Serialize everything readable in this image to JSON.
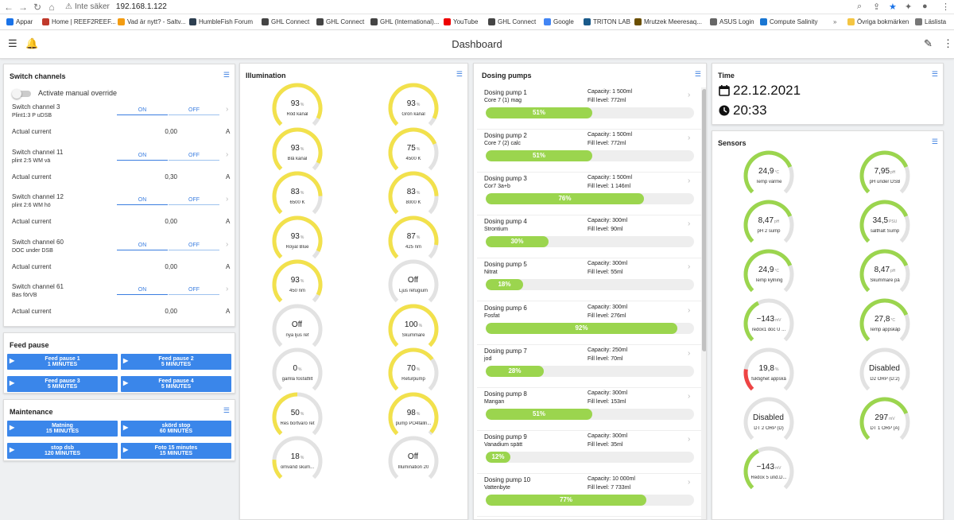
{
  "browser": {
    "security_label": "Inte säker",
    "url": "192.168.1.122",
    "bookmarks": [
      {
        "label": "Appar",
        "color": "#1a73e8"
      },
      {
        "label": "Home | REEF2REEF...",
        "color": "#c0392b"
      },
      {
        "label": "Vad är nytt? - Saltv...",
        "color": "#f39c12"
      },
      {
        "label": "HumbleFish Forum",
        "color": "#2c3e50"
      },
      {
        "label": "GHL Connect",
        "color": "#444"
      },
      {
        "label": "GHL Connect",
        "color": "#444"
      },
      {
        "label": "GHL (International)...",
        "color": "#444"
      },
      {
        "label": "YouTube",
        "color": "#e00"
      },
      {
        "label": "GHL Connect",
        "color": "#444"
      },
      {
        "label": "Google",
        "color": "#4285f4"
      },
      {
        "label": "TRITON LAB",
        "color": "#1a5a8a"
      },
      {
        "label": "Mrutzek Meeresaq...",
        "color": "#6b4f00"
      },
      {
        "label": "ASUS Login",
        "color": "#666"
      },
      {
        "label": "Compute Salinity",
        "color": "#1976d2"
      }
    ],
    "other_bookmarks": "Övriga bokmärken",
    "reading_list": "Läslista"
  },
  "app": {
    "title": "Dashboard"
  },
  "switch_panel": {
    "title": "Switch channels",
    "override_label": "Activate manual override",
    "on_label": "ON",
    "off_label": "OFF",
    "current_label": "Actual current",
    "unit": "A",
    "channels": [
      {
        "title": "Switch channel 3",
        "subtitle": "Plint1:3 P uDSB",
        "current": "0,00"
      },
      {
        "title": "Switch channel 11",
        "subtitle": "plint 2:5 WM vä",
        "current": "0,30"
      },
      {
        "title": "Switch channel 12",
        "subtitle": "plint 2:6 WM hö",
        "current": "0,00"
      },
      {
        "title": "Switch channel 60",
        "subtitle": "DOC under DSB",
        "current": "0,00"
      },
      {
        "title": "Switch channel 61",
        "subtitle": "Bas förVB",
        "current": "0,00"
      }
    ]
  },
  "feed_panel": {
    "title": "Feed pause",
    "buttons": [
      {
        "line1": "Feed pause 1",
        "line2": "1 MINUTES"
      },
      {
        "line1": "Feed pause 2",
        "line2": "5 MINUTES"
      },
      {
        "line1": "Feed pause 3",
        "line2": "5 MINUTES"
      },
      {
        "line1": "Feed pause 4",
        "line2": "5 MINUTES"
      }
    ]
  },
  "maintenance_panel": {
    "title": "Maintenance",
    "buttons": [
      {
        "line1": "Matning",
        "line2": "15 MINUTES"
      },
      {
        "line1": "skörd stop",
        "line2": "60 MINUTES"
      },
      {
        "line1": "stop dsb",
        "line2": "120 MINUTES"
      },
      {
        "line1": "Foto 15 minutes",
        "line2": "15 MINUTES"
      }
    ]
  },
  "illumination_panel": {
    "title": "Illumination",
    "gauges": [
      {
        "value": "93",
        "unit": "%",
        "label": "Röd kanal",
        "fraction": 0.93
      },
      {
        "value": "93",
        "unit": "%",
        "label": "Grön kanal",
        "fraction": 0.93
      },
      {
        "value": "93",
        "unit": "%",
        "label": "Blå kanal",
        "fraction": 0.93
      },
      {
        "value": "75",
        "unit": "%",
        "label": "4500 K",
        "fraction": 0.75
      },
      {
        "value": "83",
        "unit": "%",
        "label": "6500 K",
        "fraction": 0.83
      },
      {
        "value": "83",
        "unit": "%",
        "label": "8000 K",
        "fraction": 0.83
      },
      {
        "value": "93",
        "unit": "%",
        "label": "Royal Blue",
        "fraction": 0.93
      },
      {
        "value": "87",
        "unit": "%",
        "label": "425 nm",
        "fraction": 0.87
      },
      {
        "value": "93",
        "unit": "%",
        "label": "450 nm",
        "fraction": 0.93
      },
      {
        "value": "Off",
        "unit": "",
        "label": "Ljus refugium",
        "fraction": 0
      },
      {
        "value": "Off",
        "unit": "",
        "label": "nya ljus ref",
        "fraction": 0
      },
      {
        "value": "100",
        "unit": "%",
        "label": "Skummare",
        "fraction": 1.0
      },
      {
        "value": "0",
        "unit": "%",
        "label": "gamla fosfatfilt",
        "fraction": 0
      },
      {
        "value": "70",
        "unit": "%",
        "label": "Returpump",
        "fraction": 0.7
      },
      {
        "value": "50",
        "unit": "%",
        "label": "Res bortvaro ret",
        "fraction": 0.5
      },
      {
        "value": "98",
        "unit": "%",
        "label": "pump PO4fälln...",
        "fraction": 0.98
      },
      {
        "value": "18",
        "unit": "%",
        "label": "omvänd skum...",
        "fraction": 0.18
      },
      {
        "value": "Off",
        "unit": "",
        "label": "Illumination 20",
        "fraction": 0
      }
    ],
    "color": "#f2e14c"
  },
  "dosing_panel": {
    "title": "Dosing pumps",
    "capacity_prefix": "Capacity: ",
    "fill_prefix": "Fill level: ",
    "pumps": [
      {
        "name": "Dosing pump 1",
        "subtitle": "Core 7 (1) mag",
        "capacity": "1 500ml",
        "fill": "772ml",
        "percent": "51%",
        "fraction": 0.51
      },
      {
        "name": "Dosing pump 2",
        "subtitle": "Core 7 (2) calc",
        "capacity": "1 500ml",
        "fill": "772ml",
        "percent": "51%",
        "fraction": 0.51
      },
      {
        "name": "Dosing pump 3",
        "subtitle": "Cor7 3a+b",
        "capacity": "1 500ml",
        "fill": "1 146ml",
        "percent": "76%",
        "fraction": 0.76
      },
      {
        "name": "Dosing pump 4",
        "subtitle": "Strontium",
        "capacity": "300ml",
        "fill": "90ml",
        "percent": "30%",
        "fraction": 0.3
      },
      {
        "name": "Dosing pump 5",
        "subtitle": "Nitrat",
        "capacity": "300ml",
        "fill": "55ml",
        "percent": "18%",
        "fraction": 0.18
      },
      {
        "name": "Dosing pump 6",
        "subtitle": "Fosfat",
        "capacity": "300ml",
        "fill": "276ml",
        "percent": "92%",
        "fraction": 0.92
      },
      {
        "name": "Dosing pump 7",
        "subtitle": "jod",
        "capacity": "250ml",
        "fill": "70ml",
        "percent": "28%",
        "fraction": 0.28
      },
      {
        "name": "Dosing pump 8",
        "subtitle": "Mangan",
        "capacity": "300ml",
        "fill": "153ml",
        "percent": "51%",
        "fraction": 0.51
      },
      {
        "name": "Dosing pump 9",
        "subtitle": "Vanadium spätt",
        "capacity": "300ml",
        "fill": "35ml",
        "percent": "12%",
        "fraction": 0.12
      },
      {
        "name": "Dosing pump 10",
        "subtitle": "Vattenbyte",
        "capacity": "10 000ml",
        "fill": "7 733ml",
        "percent": "77%",
        "fraction": 0.77
      }
    ],
    "bar_color": "#9bd54e"
  },
  "time_panel": {
    "title": "Time",
    "date": "22.12.2021",
    "time": "20:33"
  },
  "sensors_panel": {
    "title": "Sensors",
    "gauges": [
      {
        "value": "24,9",
        "unit": "°C",
        "label": "Temp värme",
        "fraction": 0.75,
        "color": "#9bd54e"
      },
      {
        "value": "7,95",
        "unit": "pH",
        "label": "pH under DSB",
        "fraction": 0.75,
        "color": "#9bd54e"
      },
      {
        "value": "8,47",
        "unit": "pH",
        "label": "pH 2 sump",
        "fraction": 0.75,
        "color": "#9bd54e"
      },
      {
        "value": "34,5",
        "unit": "PSU",
        "label": "salthalt Sump",
        "fraction": 0.75,
        "color": "#9bd54e"
      },
      {
        "value": "24,9",
        "unit": "°C",
        "label": "Temp kylning",
        "fraction": 0.75,
        "color": "#9bd54e"
      },
      {
        "value": "8,47",
        "unit": "pH",
        "label": "Skummare på",
        "fraction": 0.75,
        "color": "#9bd54e"
      },
      {
        "value": "−143",
        "unit": "mV",
        "label": "redox1 doc U ...",
        "fraction": 0.4,
        "color": "#9bd54e"
      },
      {
        "value": "27,8",
        "unit": "°C",
        "label": "Temp appskåp",
        "fraction": 0.75,
        "color": "#9bd54e"
      },
      {
        "value": "19,8",
        "unit": "%",
        "label": "fuktighet appskå",
        "fraction": 0.2,
        "color": "#e44"
      },
      {
        "value": "Disabled",
        "unit": "",
        "label": "D2 ORP (D:2)",
        "fraction": 0,
        "color": "#9bd54e"
      },
      {
        "value": "Disabled",
        "unit": "",
        "label": "DT 2 ORP (D)",
        "fraction": 0,
        "color": "#9bd54e"
      },
      {
        "value": "297",
        "unit": "mV",
        "label": "DT 1 ORP (A)",
        "fraction": 0.75,
        "color": "#9bd54e"
      },
      {
        "value": "−143",
        "unit": "mV",
        "label": "Redox 5 und.D...",
        "fraction": 0.4,
        "color": "#9bd54e"
      }
    ]
  }
}
